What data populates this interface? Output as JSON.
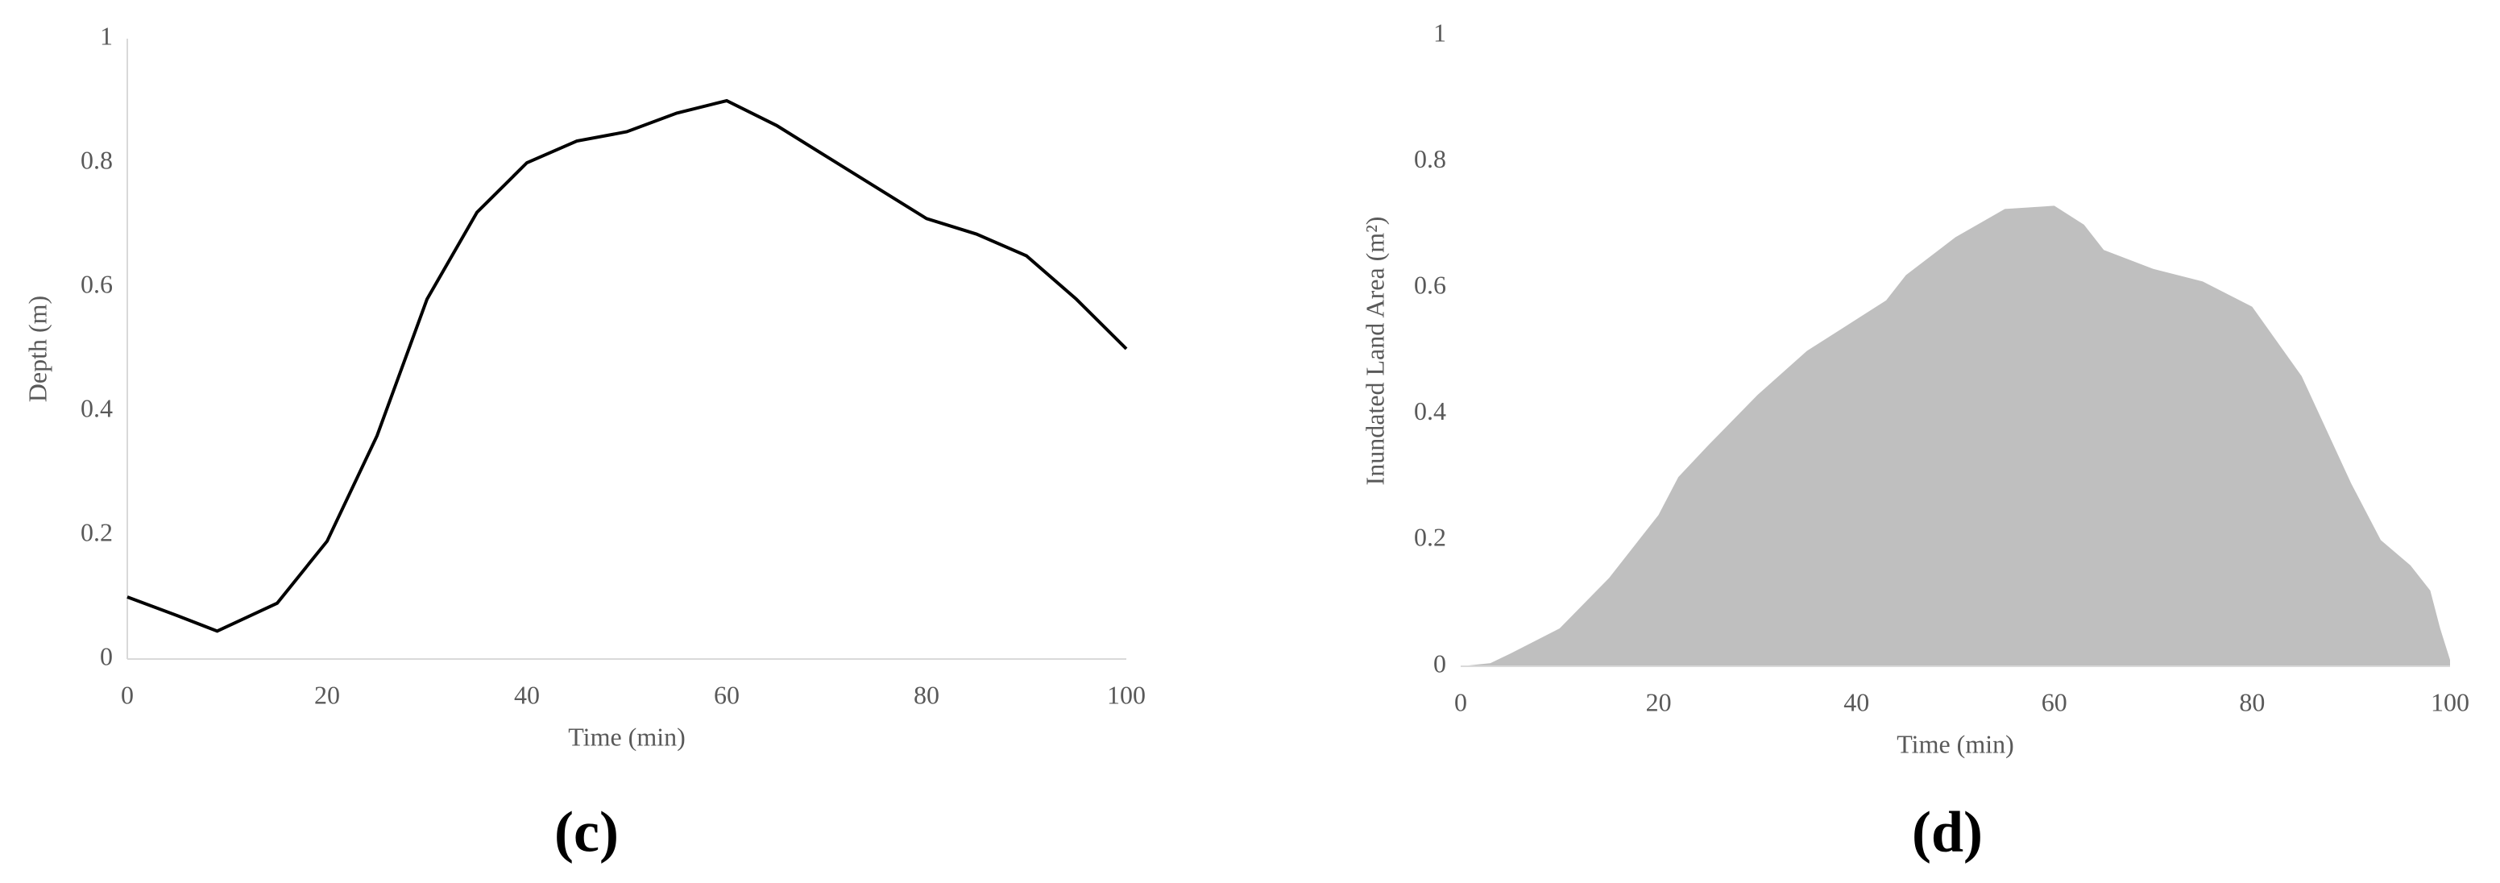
{
  "chart_data": [
    {
      "type": "line",
      "panel_label": "(c)",
      "xlabel": "Time (min)",
      "ylabel": "Depth (m)",
      "color": "#000000",
      "x": [
        0,
        5,
        9,
        15,
        20,
        25,
        30,
        35,
        40,
        45,
        50,
        55,
        60,
        65,
        70,
        75,
        80,
        85,
        90,
        95,
        100
      ],
      "values": [
        0.1,
        0.07,
        0.045,
        0.09,
        0.19,
        0.36,
        0.58,
        0.72,
        0.8,
        0.835,
        0.85,
        0.88,
        0.9,
        0.86,
        0.81,
        0.76,
        0.71,
        0.685,
        0.65,
        0.58,
        0.5
      ],
      "xlim": [
        0,
        100
      ],
      "xticks": [
        0,
        20,
        40,
        60,
        80,
        100
      ],
      "ylim": [
        0,
        1
      ],
      "yticks": [
        0,
        0.2,
        0.4,
        0.6,
        0.8,
        1
      ]
    },
    {
      "type": "area",
      "panel_label": "(d)",
      "xlabel": "Time (min)",
      "ylabel": "Inundated Land Area (m²)",
      "color": "#bfbfbf",
      "x": [
        0,
        3,
        5,
        10,
        15,
        20,
        22,
        25,
        30,
        35,
        40,
        43,
        45,
        50,
        55,
        60,
        63,
        65,
        70,
        75,
        80,
        85,
        90,
        93,
        96,
        98,
        99,
        100
      ],
      "values": [
        0,
        0.005,
        0.02,
        0.06,
        0.14,
        0.24,
        0.3,
        0.35,
        0.43,
        0.5,
        0.55,
        0.58,
        0.62,
        0.68,
        0.725,
        0.73,
        0.7,
        0.66,
        0.63,
        0.61,
        0.57,
        0.46,
        0.29,
        0.2,
        0.16,
        0.12,
        0.06,
        0.01
      ],
      "xlim": [
        0,
        100
      ],
      "xticks": [
        0,
        20,
        40,
        60,
        80,
        100
      ],
      "ylim": [
        0,
        1
      ],
      "yticks": [
        0,
        0.2,
        0.4,
        0.6,
        0.8,
        1
      ]
    }
  ]
}
